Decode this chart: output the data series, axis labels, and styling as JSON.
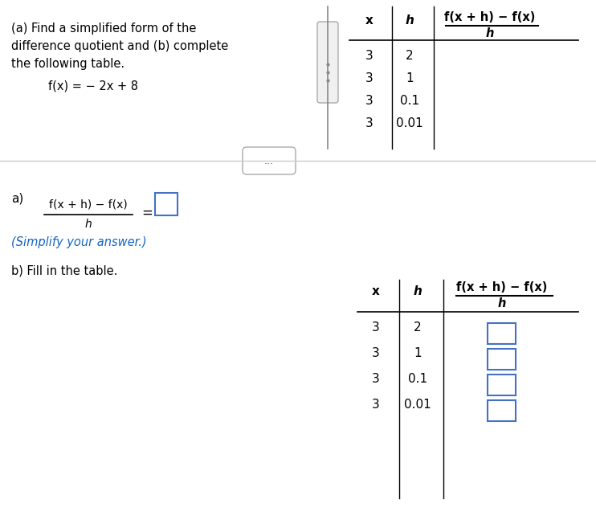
{
  "bg_color": "#ffffff",
  "top_text_lines": [
    "(a) Find a simplified form of the",
    "difference quotient and (b) complete",
    "the following table."
  ],
  "function_text": "f(x) = − 2x + 8",
  "table_header_x": "x",
  "table_header_h": "h",
  "table_header_frac_top": "f(x + h) − f(x)",
  "table_header_frac_bot": "h",
  "table_x_vals": [
    "3",
    "3",
    "3",
    "3"
  ],
  "table_h_vals": [
    "2",
    "1",
    "0.1",
    "0.01"
  ],
  "divider_dots_text": "...",
  "part_a_label": "a)",
  "part_a_frac_top": "f(x + h) − f(x)",
  "part_a_frac_bot": "h",
  "part_a_equals": "=",
  "part_a_simplify": "(Simplify your answer.)",
  "part_b_label": "b) Fill in the table.",
  "table2_x_vals": [
    "3",
    "3",
    "3",
    "3"
  ],
  "table2_h_vals": [
    "2",
    "1",
    "0.1",
    "0.01"
  ],
  "blue_color": "#1565C0",
  "box_color": "#4472C4",
  "text_color": "#000000",
  "gray_color": "#666666"
}
